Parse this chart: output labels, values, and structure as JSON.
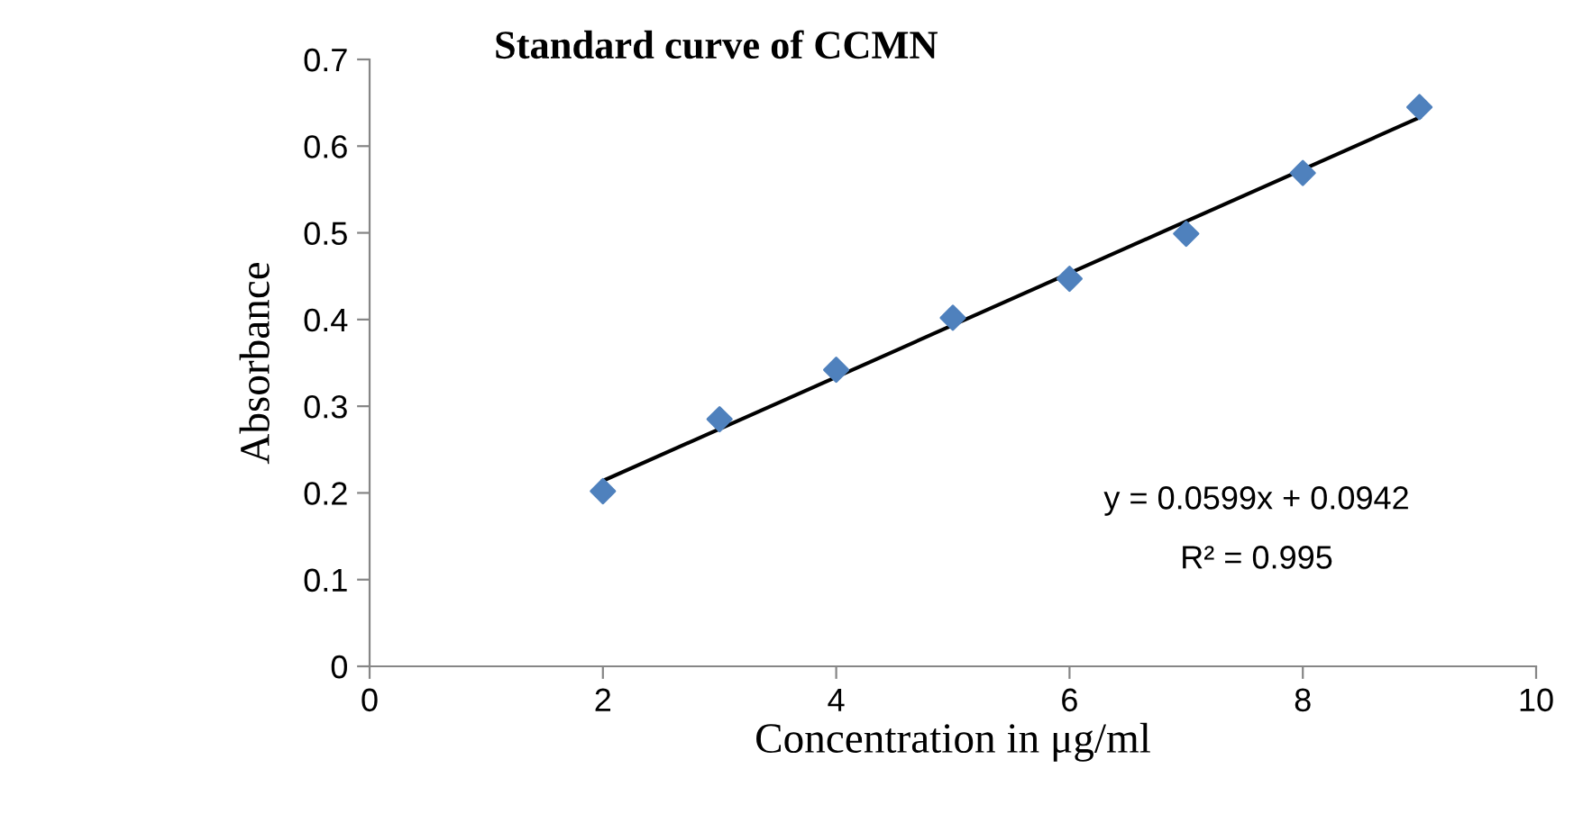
{
  "chart_data": {
    "type": "scatter",
    "title": "Standard curve of CCMN",
    "xlabel": "Concentration in μg/ml",
    "ylabel": "Absorbance",
    "x": [
      2,
      3,
      4,
      5,
      6,
      7,
      8,
      9
    ],
    "series": [
      {
        "color": "#4f81bd",
        "marker": "diamond",
        "values": [
          0.202,
          0.285,
          0.342,
          0.402,
          0.447,
          0.499,
          0.569,
          0.645
        ]
      },
      {
        "type": "line",
        "color": "#000000",
        "line_style": "solid",
        "x": [
          2,
          9
        ],
        "values": [
          0.214,
          0.633
        ]
      }
    ],
    "annotations": [
      "y = 0.0599x + 0.0942",
      "R² = 0.995"
    ],
    "xlim": [
      0,
      10
    ],
    "xticks": [
      0,
      2,
      4,
      6,
      8,
      10
    ],
    "ylim": [
      0,
      0.7
    ],
    "yticks": [
      0,
      0.1,
      0.2,
      0.3,
      0.4,
      0.5,
      0.6,
      0.7
    ],
    "grid": false,
    "legend": false
  }
}
